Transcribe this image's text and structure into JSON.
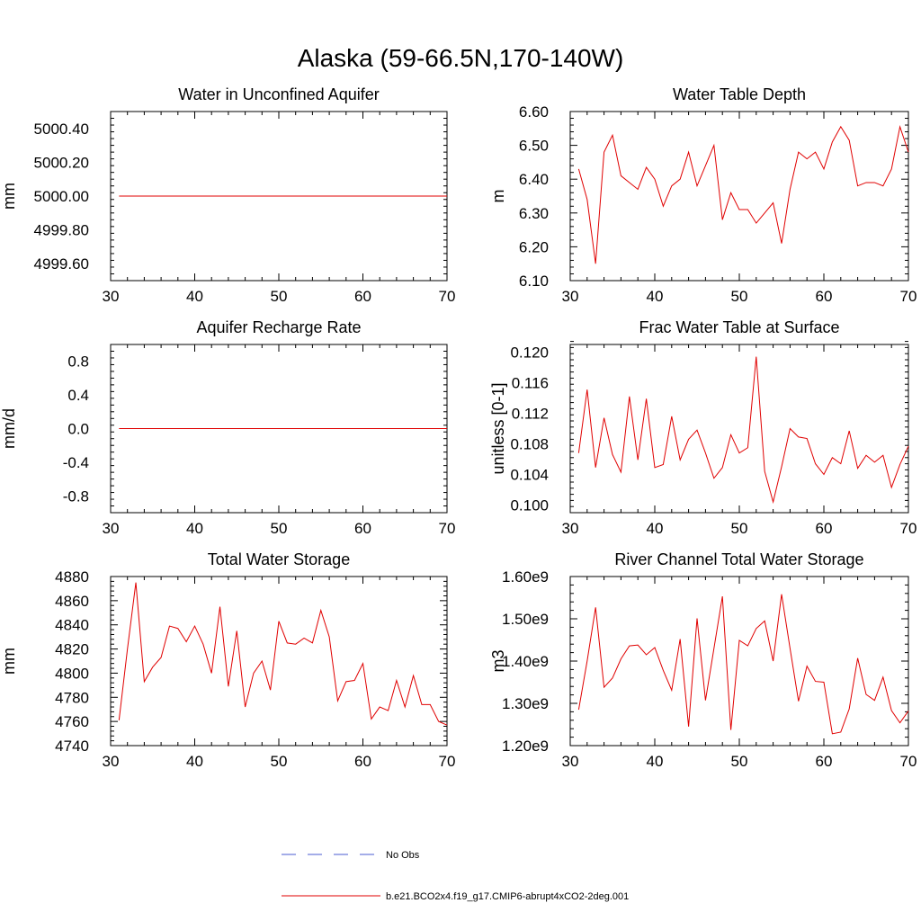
{
  "figure": {
    "title": "Alaska (59-66.5N,170-140W)"
  },
  "legend": {
    "items": [
      {
        "label": "No Obs",
        "color": "#4a5bd1",
        "dash": true
      },
      {
        "label": "b.e21.BCO2x4.f19_g17.CMIP6-abrupt4xCO2-2deg.001",
        "color": "#e00000",
        "dash": false
      }
    ]
  },
  "chart_data": [
    {
      "type": "line",
      "title": "Water in Unconfined Aquifer",
      "xlabel": "",
      "ylabel": "mm",
      "xlim": [
        30,
        70
      ],
      "ylim": [
        4999.5,
        5000.5
      ],
      "xticks": [
        30,
        40,
        50,
        60,
        70
      ],
      "xtick_labels": [
        "30",
        "40",
        "50",
        "60",
        "70"
      ],
      "yticks": [
        4999.6,
        4999.8,
        5000.0,
        5000.2,
        5000.4
      ],
      "ytick_labels": [
        "4999.60",
        "4999.80",
        "5000.00",
        "5000.20",
        "5000.40"
      ],
      "grid": false,
      "series": [
        {
          "name": "b.e21.BCO2x4.f19_g17.CMIP6-abrupt4xCO2-2deg.001",
          "color": "#e00000",
          "x": [
            31,
            32,
            33,
            34,
            35,
            36,
            37,
            38,
            39,
            40,
            41,
            42,
            43,
            44,
            45,
            46,
            47,
            48,
            49,
            50,
            51,
            52,
            53,
            54,
            55,
            56,
            57,
            58,
            59,
            60,
            61,
            62,
            63,
            64,
            65,
            66,
            67,
            68,
            69,
            70
          ],
          "y": [
            5000,
            5000,
            5000,
            5000,
            5000,
            5000,
            5000,
            5000,
            5000,
            5000,
            5000,
            5000,
            5000,
            5000,
            5000,
            5000,
            5000,
            5000,
            5000,
            5000,
            5000,
            5000,
            5000,
            5000,
            5000,
            5000,
            5000,
            5000,
            5000,
            5000,
            5000,
            5000,
            5000,
            5000,
            5000,
            5000,
            5000,
            5000,
            5000,
            5000
          ]
        }
      ]
    },
    {
      "type": "line",
      "title": "Water Table Depth",
      "xlabel": "",
      "ylabel": "m",
      "xlim": [
        30,
        70
      ],
      "ylim": [
        6.1,
        6.6
      ],
      "xticks": [
        30,
        40,
        50,
        60,
        70
      ],
      "xtick_labels": [
        "30",
        "40",
        "50",
        "60",
        "70"
      ],
      "yticks": [
        6.1,
        6.2,
        6.3,
        6.4,
        6.5,
        6.6
      ],
      "ytick_labels": [
        "6.10",
        "6.20",
        "6.30",
        "6.40",
        "6.50",
        "6.60"
      ],
      "grid": false,
      "series": [
        {
          "name": "b.e21.BCO2x4.f19_g17.CMIP6-abrupt4xCO2-2deg.001",
          "color": "#e00000",
          "x": [
            31,
            32,
            33,
            34,
            35,
            36,
            37,
            38,
            39,
            40,
            41,
            42,
            43,
            44,
            45,
            46,
            47,
            48,
            49,
            50,
            51,
            52,
            53,
            54,
            55,
            56,
            57,
            58,
            59,
            60,
            61,
            62,
            63,
            64,
            65,
            66,
            67,
            68,
            69,
            70
          ],
          "y": [
            6.43,
            6.34,
            6.15,
            6.48,
            6.53,
            6.41,
            6.39,
            6.37,
            6.435,
            6.4,
            6.32,
            6.38,
            6.4,
            6.48,
            6.38,
            6.44,
            6.5,
            6.28,
            6.36,
            6.31,
            6.31,
            6.27,
            6.3,
            6.33,
            6.21,
            6.37,
            6.48,
            6.46,
            6.48,
            6.43,
            6.51,
            6.555,
            6.515,
            6.38,
            6.39,
            6.39,
            6.38,
            6.43,
            6.555,
            6.48
          ]
        }
      ]
    },
    {
      "type": "line",
      "title": "Aquifer Recharge Rate",
      "xlabel": "",
      "ylabel": "mm/d",
      "xlim": [
        30,
        70
      ],
      "ylim": [
        -1,
        1
      ],
      "xticks": [
        30,
        40,
        50,
        60,
        70
      ],
      "xtick_labels": [
        "30",
        "40",
        "50",
        "60",
        "70"
      ],
      "yticks": [
        -0.8,
        -0.4,
        0,
        0.4,
        0.8
      ],
      "ytick_labels": [
        "-0.8",
        "-0.4",
        "0.0",
        "0.4",
        "0.8"
      ],
      "grid": false,
      "series": [
        {
          "name": "b.e21.BCO2x4.f19_g17.CMIP6-abrupt4xCO2-2deg.001",
          "color": "#e00000",
          "x": [
            31,
            32,
            33,
            34,
            35,
            36,
            37,
            38,
            39,
            40,
            41,
            42,
            43,
            44,
            45,
            46,
            47,
            48,
            49,
            50,
            51,
            52,
            53,
            54,
            55,
            56,
            57,
            58,
            59,
            60,
            61,
            62,
            63,
            64,
            65,
            66,
            67,
            68,
            69,
            70
          ],
          "y": [
            0,
            0,
            0,
            0,
            0,
            0,
            0,
            0,
            0,
            0,
            0,
            0,
            0,
            0,
            0,
            0,
            0,
            0,
            0,
            0,
            0,
            0,
            0,
            0,
            0,
            0,
            0,
            0,
            0,
            0,
            0,
            0,
            0,
            0,
            0,
            0,
            0,
            0,
            0,
            0
          ]
        }
      ]
    },
    {
      "type": "line",
      "title": "Frac Water Table at Surface",
      "xlabel": "",
      "ylabel": "unitless [0-1]",
      "xlim": [
        30,
        70
      ],
      "ylim": [
        0.099,
        0.121
      ],
      "xticks": [
        30,
        40,
        50,
        60,
        70
      ],
      "xtick_labels": [
        "30",
        "40",
        "50",
        "60",
        "70"
      ],
      "yticks": [
        0.1,
        0.104,
        0.108,
        0.112,
        0.116,
        0.12
      ],
      "ytick_labels": [
        "0.100",
        "0.104",
        "0.108",
        "0.112",
        "0.116",
        "0.120"
      ],
      "grid": false,
      "series": [
        {
          "name": "b.e21.BCO2x4.f19_g17.CMIP6-abrupt4xCO2-2deg.001",
          "color": "#e00000",
          "x": [
            31,
            32,
            33,
            34,
            35,
            36,
            37,
            38,
            39,
            40,
            41,
            42,
            43,
            44,
            45,
            46,
            47,
            48,
            49,
            50,
            51,
            52,
            53,
            54,
            55,
            56,
            57,
            58,
            59,
            60,
            61,
            62,
            63,
            64,
            65,
            66,
            67,
            68,
            69,
            70
          ],
          "y": [
            0.1068,
            0.1151,
            0.1049,
            0.1114,
            0.1066,
            0.1043,
            0.1142,
            0.1059,
            0.1139,
            0.1049,
            0.1053,
            0.1116,
            0.1059,
            0.1086,
            0.1098,
            0.1068,
            0.1035,
            0.1049,
            0.1092,
            0.1068,
            0.1075,
            0.1194,
            0.1044,
            0.1004,
            0.105,
            0.11,
            0.1089,
            0.1087,
            0.1054,
            0.104,
            0.1062,
            0.1054,
            0.1097,
            0.1048,
            0.1065,
            0.1056,
            0.1065,
            0.1023,
            0.1053,
            0.1077
          ]
        }
      ]
    },
    {
      "type": "line",
      "title": "Total Water Storage",
      "xlabel": "",
      "ylabel": "mm",
      "xlim": [
        30,
        70
      ],
      "ylim": [
        4740,
        4880
      ],
      "xticks": [
        30,
        40,
        50,
        60,
        70
      ],
      "xtick_labels": [
        "30",
        "40",
        "50",
        "60",
        "70"
      ],
      "yticks": [
        4740,
        4760,
        4780,
        4800,
        4820,
        4840,
        4860,
        4880
      ],
      "ytick_labels": [
        "4740",
        "4760",
        "4780",
        "4800",
        "4820",
        "4840",
        "4860",
        "4880"
      ],
      "grid": false,
      "series": [
        {
          "name": "b.e21.BCO2x4.f19_g17.CMIP6-abrupt4xCO2-2deg.001",
          "color": "#e00000",
          "x": [
            31,
            32,
            33,
            34,
            35,
            36,
            37,
            38,
            39,
            40,
            41,
            42,
            43,
            44,
            45,
            46,
            47,
            48,
            49,
            50,
            51,
            52,
            53,
            54,
            55,
            56,
            57,
            58,
            59,
            60,
            61,
            62,
            63,
            64,
            65,
            66,
            67,
            68,
            69,
            70
          ],
          "y": [
            4761,
            4820,
            4875,
            4793,
            4805,
            4813,
            4839,
            4837,
            4826,
            4839,
            4824,
            4800,
            4855,
            4789,
            4835,
            4772,
            4800,
            4810,
            4786,
            4843,
            4825,
            4824,
            4829,
            4825,
            4852,
            4830,
            4777,
            4793,
            4794,
            4808,
            4762,
            4772,
            4769,
            4794,
            4772,
            4798,
            4774,
            4774,
            4760,
            4757
          ]
        }
      ]
    },
    {
      "type": "line",
      "title": "River Channel Total Water Storage",
      "xlabel": "",
      "ylabel": "m3",
      "xlim": [
        30,
        70
      ],
      "ylim": [
        1200000000.0,
        1600000000.0
      ],
      "xticks": [
        30,
        40,
        50,
        60,
        70
      ],
      "xtick_labels": [
        "30",
        "40",
        "50",
        "60",
        "70"
      ],
      "yticks": [
        1200000000.0,
        1300000000.0,
        1400000000.0,
        1500000000.0,
        1600000000.0
      ],
      "ytick_labels": [
        "1.20e9",
        "1.30e9",
        "1.40e9",
        "1.50e9",
        "1.60e9"
      ],
      "grid": false,
      "series": [
        {
          "name": "b.e21.BCO2x4.f19_g17.CMIP6-abrupt4xCO2-2deg.001",
          "color": "#e00000",
          "x": [
            31,
            32,
            33,
            34,
            35,
            36,
            37,
            38,
            39,
            40,
            41,
            42,
            43,
            44,
            45,
            46,
            47,
            48,
            49,
            50,
            51,
            52,
            53,
            54,
            55,
            56,
            57,
            58,
            59,
            60,
            61,
            62,
            63,
            64,
            65,
            66,
            67,
            68,
            69,
            70
          ],
          "y": [
            1285000000.0,
            1400000000.0,
            1527000000.0,
            1338000000.0,
            1360000000.0,
            1405000000.0,
            1436000000.0,
            1438000000.0,
            1415000000.0,
            1432000000.0,
            1378000000.0,
            1331000000.0,
            1452000000.0,
            1245000000.0,
            1501000000.0,
            1307000000.0,
            1430000000.0,
            1553000000.0,
            1237000000.0,
            1449000000.0,
            1436000000.0,
            1477000000.0,
            1495000000.0,
            1400000000.0,
            1558000000.0,
            1430000000.0,
            1305000000.0,
            1388000000.0,
            1352000000.0,
            1350000000.0,
            1228000000.0,
            1232000000.0,
            1287000000.0,
            1407000000.0,
            1321000000.0,
            1307000000.0,
            1362000000.0,
            1283000000.0,
            1254000000.0,
            1282000000.0
          ]
        }
      ]
    }
  ]
}
